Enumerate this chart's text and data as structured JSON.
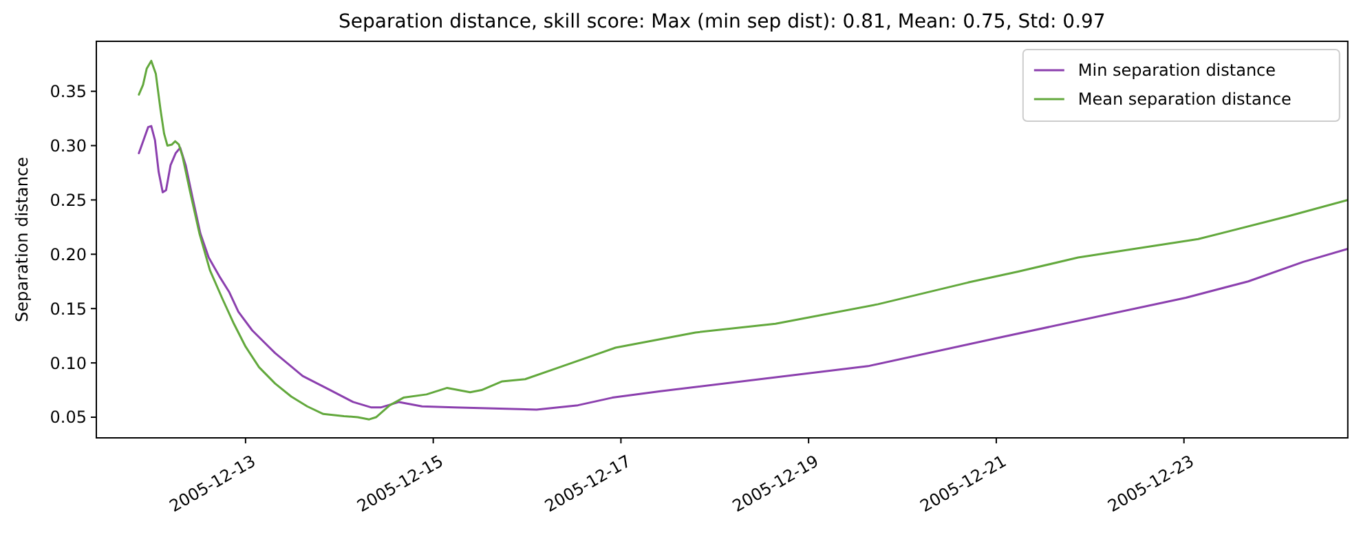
{
  "chart_data": {
    "type": "line",
    "title": "Separation distance, skill score: Max (min sep dist): 0.81, Mean: 0.75, Std: 0.97",
    "ylabel": "Separation distance",
    "xlim": [
      "2005-12-11T09:50",
      "2005-12-24T17:54"
    ],
    "xticks": [
      "2005-12-13",
      "2005-12-15",
      "2005-12-17",
      "2005-12-19",
      "2005-12-21",
      "2005-12-23"
    ],
    "ylim": [
      0.031,
      0.396
    ],
    "yticks": [
      0.05,
      {
        "value": 0.1,
        "label": "0.10"
      },
      0.15,
      {
        "value": 0.2,
        "label": "0.20"
      },
      0.25,
      {
        "value": 0.3,
        "label": "0.30"
      },
      0.35
    ],
    "grid": false,
    "legend": "top right",
    "line_style": "solid",
    "marker": "none",
    "series": [
      {
        "name": "Min separation distance",
        "color": "#8b3fae",
        "x": [
          "2005-12-11T20:43",
          "2005-12-11T23:05",
          "2005-12-11T23:53",
          "2005-12-12T00:50",
          "2005-12-12T01:46",
          "2005-12-12T02:49",
          "2005-12-12T03:40",
          "2005-12-12T04:49",
          "2005-12-12T06:07",
          "2005-12-12T07:17",
          "2005-12-12T08:41",
          "2005-12-12T10:27",
          "2005-12-12T12:27",
          "2005-12-12T14:34",
          "2005-12-12T17:15",
          "2005-12-12T19:51",
          "2005-12-12T22:10",
          "2005-12-13T01:41",
          "2005-12-13T07:34",
          "2005-12-13T14:36",
          "2005-12-13T21:39",
          "2005-12-14T03:31",
          "2005-12-14T08:12",
          "2005-12-14T10:34",
          "2005-12-14T15:15",
          "2005-12-14T21:07",
          "2005-12-15T05:19",
          "2005-12-16T02:26",
          "2005-12-16T13:00",
          "2005-12-16T21:48",
          "2005-12-17T10:07",
          "2005-12-19T15:12",
          "2005-12-21T00:27",
          "2005-12-23T00:28",
          "2005-12-23T16:26",
          "2005-12-24T06:31",
          "2005-12-24T17:54"
        ],
        "values": [
          0.293,
          0.317,
          0.318,
          0.305,
          0.276,
          0.257,
          0.259,
          0.282,
          0.293,
          0.298,
          0.282,
          0.252,
          0.219,
          0.197,
          0.18,
          0.165,
          0.147,
          0.13,
          0.109,
          0.088,
          0.075,
          0.064,
          0.059,
          0.059,
          0.064,
          0.06,
          0.059,
          0.057,
          0.061,
          0.068,
          0.074,
          0.097,
          0.123,
          0.16,
          0.175,
          0.193,
          0.205
        ]
      },
      {
        "name": "Mean separation distance",
        "color": "#62a83c",
        "x": [
          "2005-12-11T20:43",
          "2005-12-11T21:47",
          "2005-12-11T22:44",
          "2005-12-11T23:53",
          "2005-12-12T01:03",
          "2005-12-12T02:15",
          "2005-12-12T03:10",
          "2005-12-12T04:01",
          "2005-12-12T05:10",
          "2005-12-12T05:59",
          "2005-12-12T06:56",
          "2005-12-12T07:53",
          "2005-12-12T09:51",
          "2005-12-12T12:13",
          "2005-12-12T14:55",
          "2005-12-12T18:05",
          "2005-12-12T21:01",
          "2005-12-13T00:00",
          "2005-12-13T03:27",
          "2005-12-13T07:34",
          "2005-12-13T11:41",
          "2005-12-13T15:46",
          "2005-12-13T19:53",
          "2005-12-14T01:10",
          "2005-12-14T04:41",
          "2005-12-14T07:37",
          "2005-12-14T09:22",
          "2005-12-14T12:53",
          "2005-12-14T16:24",
          "2005-12-14T22:17",
          "2005-12-15T03:34",
          "2005-12-15T09:26",
          "2005-12-15T12:22",
          "2005-12-15T17:38",
          "2005-12-15T23:31",
          "2005-12-16T08:19",
          "2005-12-16T22:37",
          "2005-12-17T19:04",
          "2005-12-18T15:32",
          "2005-12-19T17:46",
          "2005-12-20T16:47",
          "2005-12-21T05:35",
          "2005-12-21T20:56",
          "2005-12-23T03:38",
          "2005-12-24T02:41",
          "2005-12-24T17:54"
        ],
        "values": [
          0.347,
          0.356,
          0.371,
          0.378,
          0.366,
          0.333,
          0.311,
          0.3,
          0.301,
          0.304,
          0.301,
          0.29,
          0.257,
          0.219,
          0.185,
          0.159,
          0.136,
          0.115,
          0.096,
          0.081,
          0.069,
          0.06,
          0.053,
          0.051,
          0.05,
          0.048,
          0.05,
          0.061,
          0.068,
          0.071,
          0.077,
          0.073,
          0.075,
          0.083,
          0.085,
          0.096,
          0.114,
          0.128,
          0.136,
          0.154,
          0.174,
          0.184,
          0.197,
          0.214,
          0.235,
          0.25
        ]
      }
    ]
  }
}
